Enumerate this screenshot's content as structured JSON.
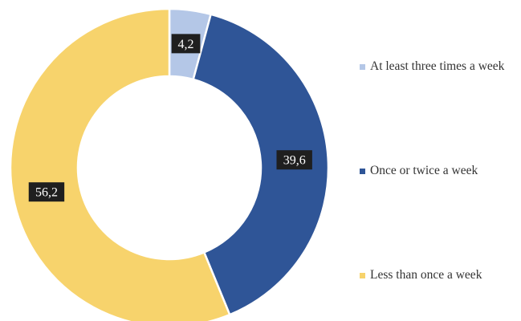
{
  "chart_data": {
    "type": "donut",
    "title": "",
    "series": [
      {
        "name": "",
        "slices": [
          {
            "label": "At least three times a week",
            "value": 4.2,
            "display": "4,2",
            "color": "#b4c7e7"
          },
          {
            "label": "Once or twice a week",
            "value": 39.6,
            "display": "39,6",
            "color": "#2f5597"
          },
          {
            "label": "Less than once a week",
            "value": 56.2,
            "display": "56,2",
            "color": "#f7d36c"
          }
        ]
      }
    ],
    "legend_position": "right",
    "data_label_style": {
      "background": "#1f1f1f",
      "text": "#ffffff"
    },
    "slice_border": "#ffffff"
  }
}
